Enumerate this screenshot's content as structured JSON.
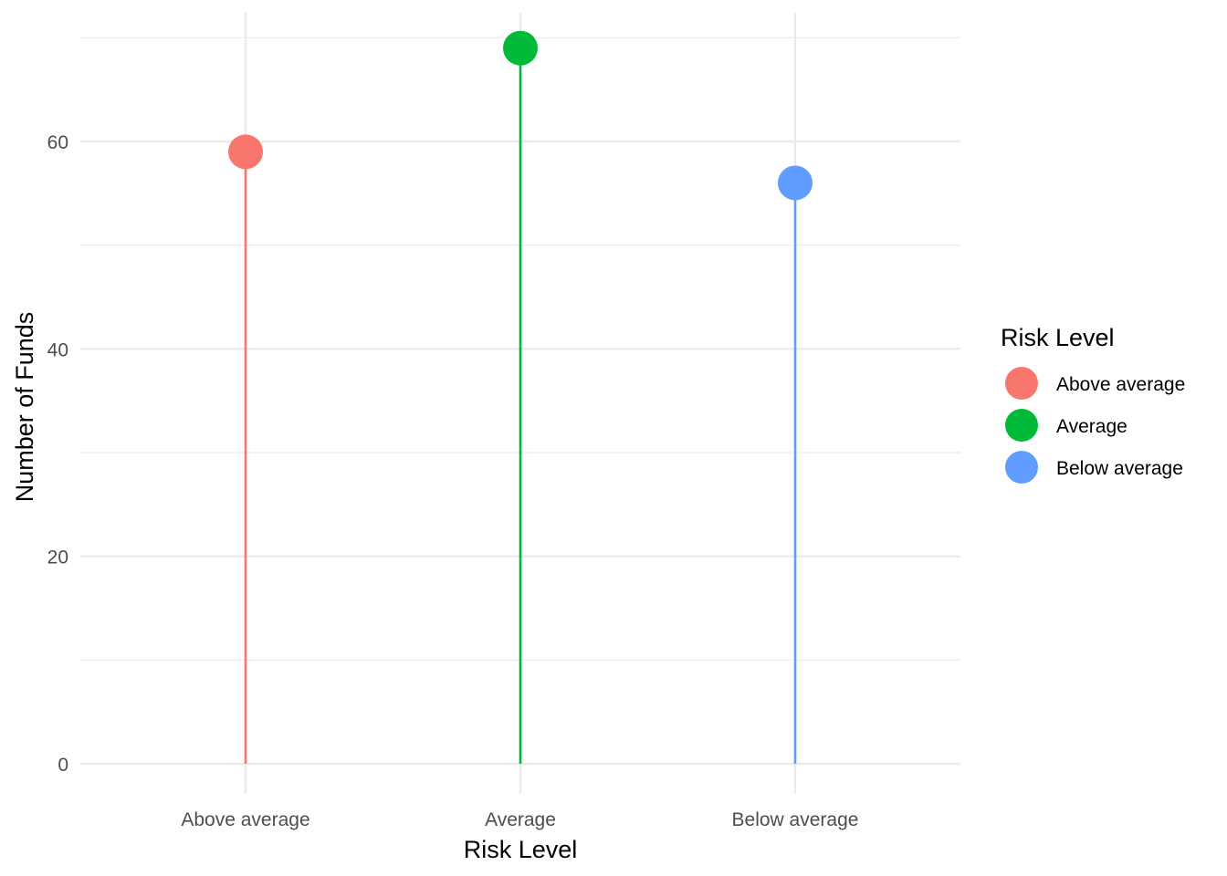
{
  "chart_data": {
    "type": "lollipop",
    "categories": [
      "Above average",
      "Average",
      "Below average"
    ],
    "values": [
      59,
      69,
      56
    ],
    "colors": [
      "#F8766D",
      "#00BA38",
      "#619CFF"
    ],
    "xlabel": "Risk Level",
    "ylabel": "Number of Funds",
    "ylim": [
      0,
      70
    ],
    "y_ticks": [
      0,
      20,
      40,
      60
    ],
    "grid": true,
    "legend": {
      "title": "Risk Level",
      "position": "right",
      "entries": [
        "Above average",
        "Average",
        "Below average"
      ]
    }
  }
}
